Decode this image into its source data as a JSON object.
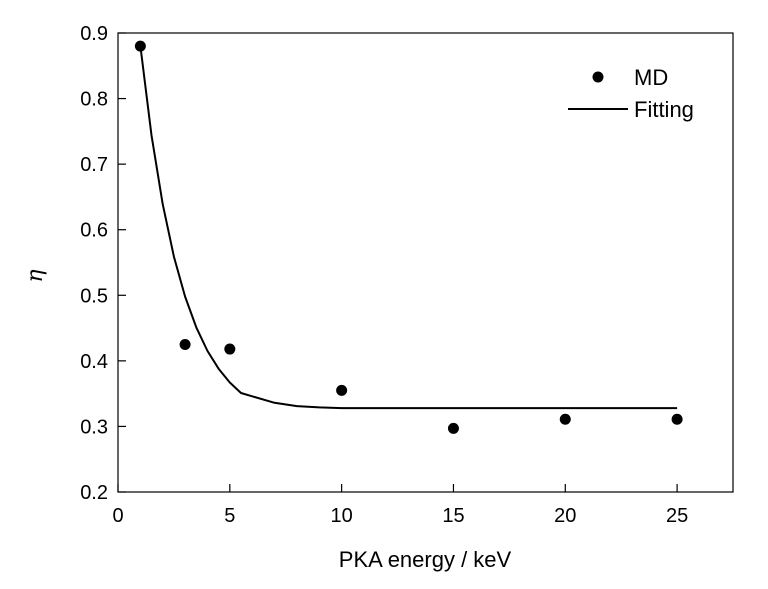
{
  "chart_data": {
    "type": "scatter",
    "title": "",
    "xlabel": "PKA energy / keV",
    "ylabel": "η",
    "xlim": [
      0,
      27.5
    ],
    "ylim": [
      0.2,
      0.9
    ],
    "xticks": [
      0,
      5,
      10,
      15,
      20,
      25
    ],
    "yticks": [
      0.2,
      0.3,
      0.4,
      0.5,
      0.6,
      0.7,
      0.8,
      0.9
    ],
    "xtick_labels": [
      "0",
      "5",
      "10",
      "15",
      "20",
      "25"
    ],
    "ytick_labels": [
      "0.2",
      "0.3",
      "0.4",
      "0.5",
      "0.6",
      "0.7",
      "0.8",
      "0.9"
    ],
    "grid": false,
    "legend_position": "top-right",
    "series": [
      {
        "name": "MD",
        "kind": "scatter",
        "color": "#000000",
        "x": [
          1,
          3,
          5,
          10,
          15,
          20,
          25
        ],
        "y": [
          0.88,
          0.425,
          0.418,
          0.355,
          0.297,
          0.311,
          0.311
        ]
      },
      {
        "name": "Fitting",
        "kind": "line",
        "color": "#000000",
        "x": [
          1,
          1.5,
          2,
          2.5,
          3,
          3.5,
          4,
          4.5,
          5,
          5.5,
          6,
          7,
          8,
          9,
          10,
          12,
          15,
          20,
          25
        ],
        "y": [
          0.88,
          0.744,
          0.639,
          0.559,
          0.498,
          0.451,
          0.415,
          0.388,
          0.367,
          0.351,
          0.346,
          0.336,
          0.331,
          0.329,
          0.328,
          0.328,
          0.328,
          0.328,
          0.328
        ]
      }
    ]
  }
}
